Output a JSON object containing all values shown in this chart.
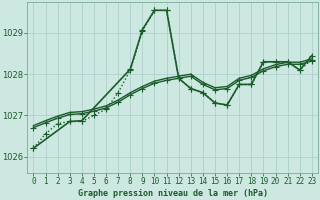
{
  "title": "Graphe pression niveau de la mer (hPa)",
  "bg_color": "#cce8e0",
  "grid_color": "#aacccc",
  "line_color": "#1a5c2a",
  "ylim": [
    1025.6,
    1029.75
  ],
  "xlim": [
    -0.5,
    23.5
  ],
  "yticks": [
    1026,
    1027,
    1028,
    1029
  ],
  "xticks": [
    0,
    1,
    2,
    3,
    4,
    5,
    6,
    7,
    8,
    9,
    10,
    11,
    12,
    13,
    14,
    15,
    16,
    17,
    18,
    19,
    20,
    21,
    22,
    23
  ],
  "series": [
    {
      "x": [
        0,
        1,
        2,
        3,
        4,
        5,
        6,
        7,
        8,
        9,
        10,
        11,
        12,
        13,
        14,
        15,
        16,
        17,
        18,
        19,
        20,
        21,
        22,
        23
      ],
      "y": [
        1026.2,
        1026.55,
        1026.8,
        1026.85,
        1026.85,
        1027.0,
        1027.15,
        1027.55,
        1028.1,
        1029.05,
        1029.55,
        1029.55,
        1027.9,
        1027.65,
        1027.55,
        1027.3,
        1027.25,
        1027.75,
        1027.75,
        1028.3,
        1028.3,
        1028.3,
        1028.1,
        1028.35
      ],
      "linestyle": "dotted",
      "linewidth": 1.0,
      "marker": "+",
      "markersize": 4
    },
    {
      "x": [
        0,
        1,
        2,
        3,
        4,
        5,
        6,
        7,
        8,
        9,
        10,
        11,
        12,
        13,
        14,
        15,
        16,
        17,
        18,
        19,
        20,
        21,
        22,
        23
      ],
      "y": [
        1026.7,
        1026.82,
        1026.93,
        1027.02,
        1027.04,
        1027.1,
        1027.18,
        1027.32,
        1027.5,
        1027.65,
        1027.78,
        1027.85,
        1027.9,
        1027.95,
        1027.75,
        1027.62,
        1027.65,
        1027.85,
        1027.92,
        1028.08,
        1028.18,
        1028.24,
        1028.24,
        1028.32
      ],
      "linestyle": "solid",
      "linewidth": 1.0,
      "marker": "+",
      "markersize": 4
    },
    {
      "x": [
        0,
        1,
        2,
        3,
        4,
        5,
        6,
        7,
        8,
        9,
        10,
        11,
        12,
        13,
        14,
        15,
        16,
        17,
        18,
        19,
        20,
        21,
        22,
        23
      ],
      "y": [
        1026.75,
        1026.87,
        1026.98,
        1027.07,
        1027.09,
        1027.15,
        1027.23,
        1027.37,
        1027.55,
        1027.7,
        1027.83,
        1027.9,
        1027.95,
        1028.0,
        1027.8,
        1027.67,
        1027.7,
        1027.9,
        1027.97,
        1028.13,
        1028.23,
        1028.29,
        1028.29,
        1028.37
      ],
      "linestyle": "solid",
      "linewidth": 1.0,
      "marker": null,
      "markersize": 0
    },
    {
      "x": [
        0,
        3,
        4,
        8,
        9,
        10,
        11,
        12,
        13,
        14,
        15,
        16,
        17,
        18,
        19,
        20,
        21,
        22,
        23
      ],
      "y": [
        1026.2,
        1026.85,
        1026.87,
        1028.12,
        1029.08,
        1029.55,
        1029.55,
        1027.9,
        1027.65,
        1027.55,
        1027.3,
        1027.25,
        1027.75,
        1027.75,
        1028.3,
        1028.3,
        1028.3,
        1028.1,
        1028.45
      ],
      "linestyle": "solid",
      "linewidth": 1.2,
      "marker": "+",
      "markersize": 4
    }
  ]
}
